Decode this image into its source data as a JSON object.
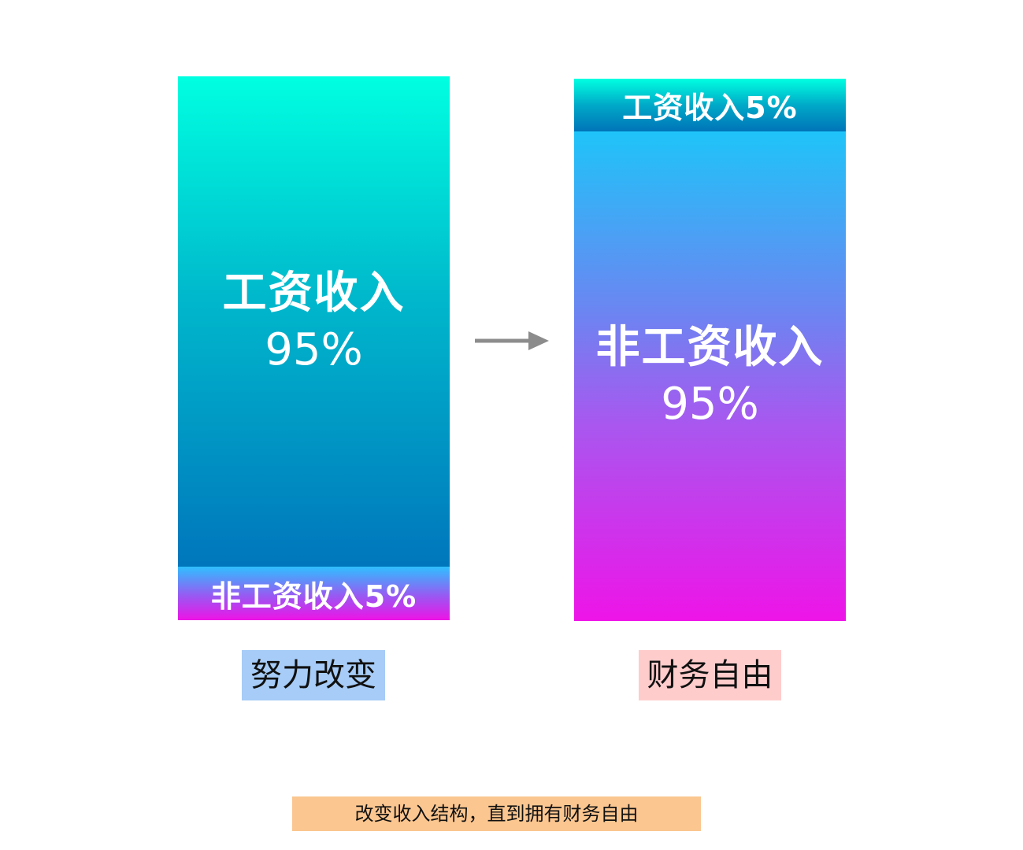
{
  "left_bar": {
    "main_label": "工资收入",
    "main_value": "95%",
    "minor_label": "非工资收入5%",
    "caption": "努力改变"
  },
  "right_bar": {
    "minor_label": "工资收入5%",
    "main_label": "非工资收入",
    "main_value": "95%",
    "caption": "财务自由"
  },
  "footer": {
    "note": "改变收入结构，直到拥有财务自由"
  },
  "colors": {
    "arrow": "#8c8c8c",
    "left_caption_bg": "#a6ccf7",
    "right_caption_bg": "#ffcccc",
    "footer_bg": "#fbc690"
  }
}
